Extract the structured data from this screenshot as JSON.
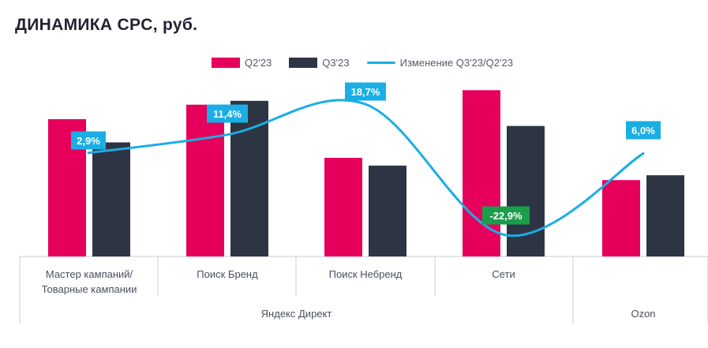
{
  "chart_data": {
    "type": "bar",
    "title": "ДИНАМИКА CPC, руб.",
    "categories": [
      [
        "Мастер кампаний/",
        "Товарные кампании"
      ],
      [
        "Поиск Бренд"
      ],
      [
        "Поиск Небренд"
      ],
      [
        "Сети"
      ],
      [
        ""
      ]
    ],
    "groups": [
      {
        "label": "Яндекс Директ",
        "span": [
          0,
          3
        ]
      },
      {
        "label": "Ozon",
        "span": [
          4,
          4
        ]
      }
    ],
    "series": [
      {
        "name": "Q2'23",
        "color": "#e6005c",
        "values": [
          14.2,
          15.7,
          10.2,
          17.2,
          7.9
        ]
      },
      {
        "name": "Q3'23",
        "color": "#2d3444",
        "values": [
          11.8,
          16.1,
          9.4,
          13.5,
          8.4
        ]
      }
    ],
    "change_series": {
      "name": "Изменение Q3'23/Q2'23",
      "color": "#1aaee5",
      "values": [
        2.9,
        11.4,
        18.7,
        -22.9,
        6.0
      ],
      "labels": [
        "2,9%",
        "11,4%",
        "18,7%",
        "-22,9%",
        "6,0%"
      ],
      "label_colors": [
        "#1aaee5",
        "#1aaee5",
        "#1aaee5",
        "#1a9e4b",
        "#1aaee5"
      ]
    },
    "ylim": [
      0,
      20
    ],
    "xlabel": "",
    "ylabel": "",
    "legend_position": "top-center",
    "grid": false
  }
}
